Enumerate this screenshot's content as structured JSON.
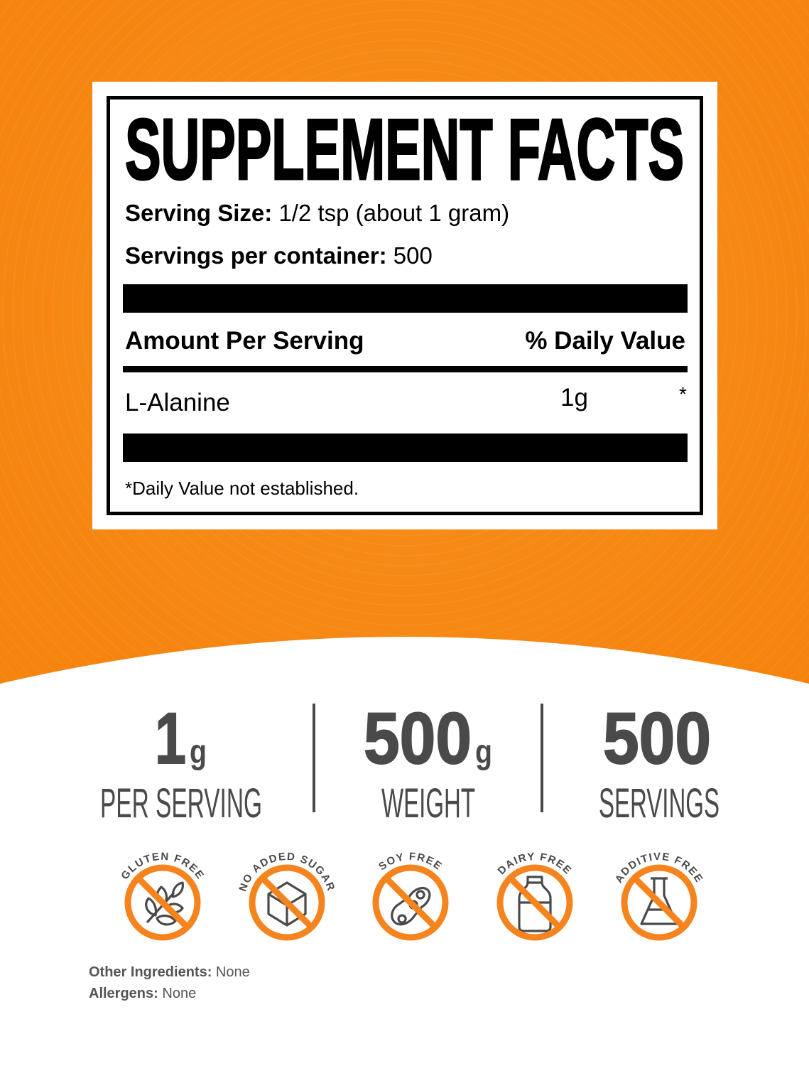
{
  "colors": {
    "orange": "#F68712",
    "label_border": "#000000",
    "stat_text": "#4a4a4a",
    "icon_orange": "#F5841F",
    "icon_gray": "#4a4a4a"
  },
  "facts": {
    "title": "SUPPLEMENT FACTS",
    "serving_size_label": "Serving Size:",
    "serving_size_value": "1/2 tsp (about 1 gram)",
    "servings_label": "Servings per container:",
    "servings_value": "500",
    "amount_header": "Amount Per Serving",
    "dv_header": "% Daily Value",
    "ingredients": [
      {
        "name": "L-Alanine",
        "amount": "1g",
        "dv": "*"
      }
    ],
    "footnote": "*Daily Value not established."
  },
  "stats": [
    {
      "value": "1",
      "unit": "g",
      "label": "PER SERVING"
    },
    {
      "value": "500",
      "unit": "g",
      "label": "WEIGHT"
    },
    {
      "value": "500",
      "unit": "",
      "label": "SERVINGS"
    }
  ],
  "badges": [
    {
      "label": "GLUTEN FREE",
      "icon": "wheat-icon"
    },
    {
      "label": "NO ADDED SUGAR",
      "icon": "sugar-cube-icon"
    },
    {
      "label": "SOY FREE",
      "icon": "soybean-icon"
    },
    {
      "label": "DAIRY FREE",
      "icon": "milk-bottle-icon"
    },
    {
      "label": "ADDITIVE FREE",
      "icon": "flask-icon"
    }
  ],
  "other": {
    "ingredients_label": "Other Ingredients:",
    "ingredients_value": "None",
    "allergens_label": "Allergens:",
    "allergens_value": "None"
  }
}
